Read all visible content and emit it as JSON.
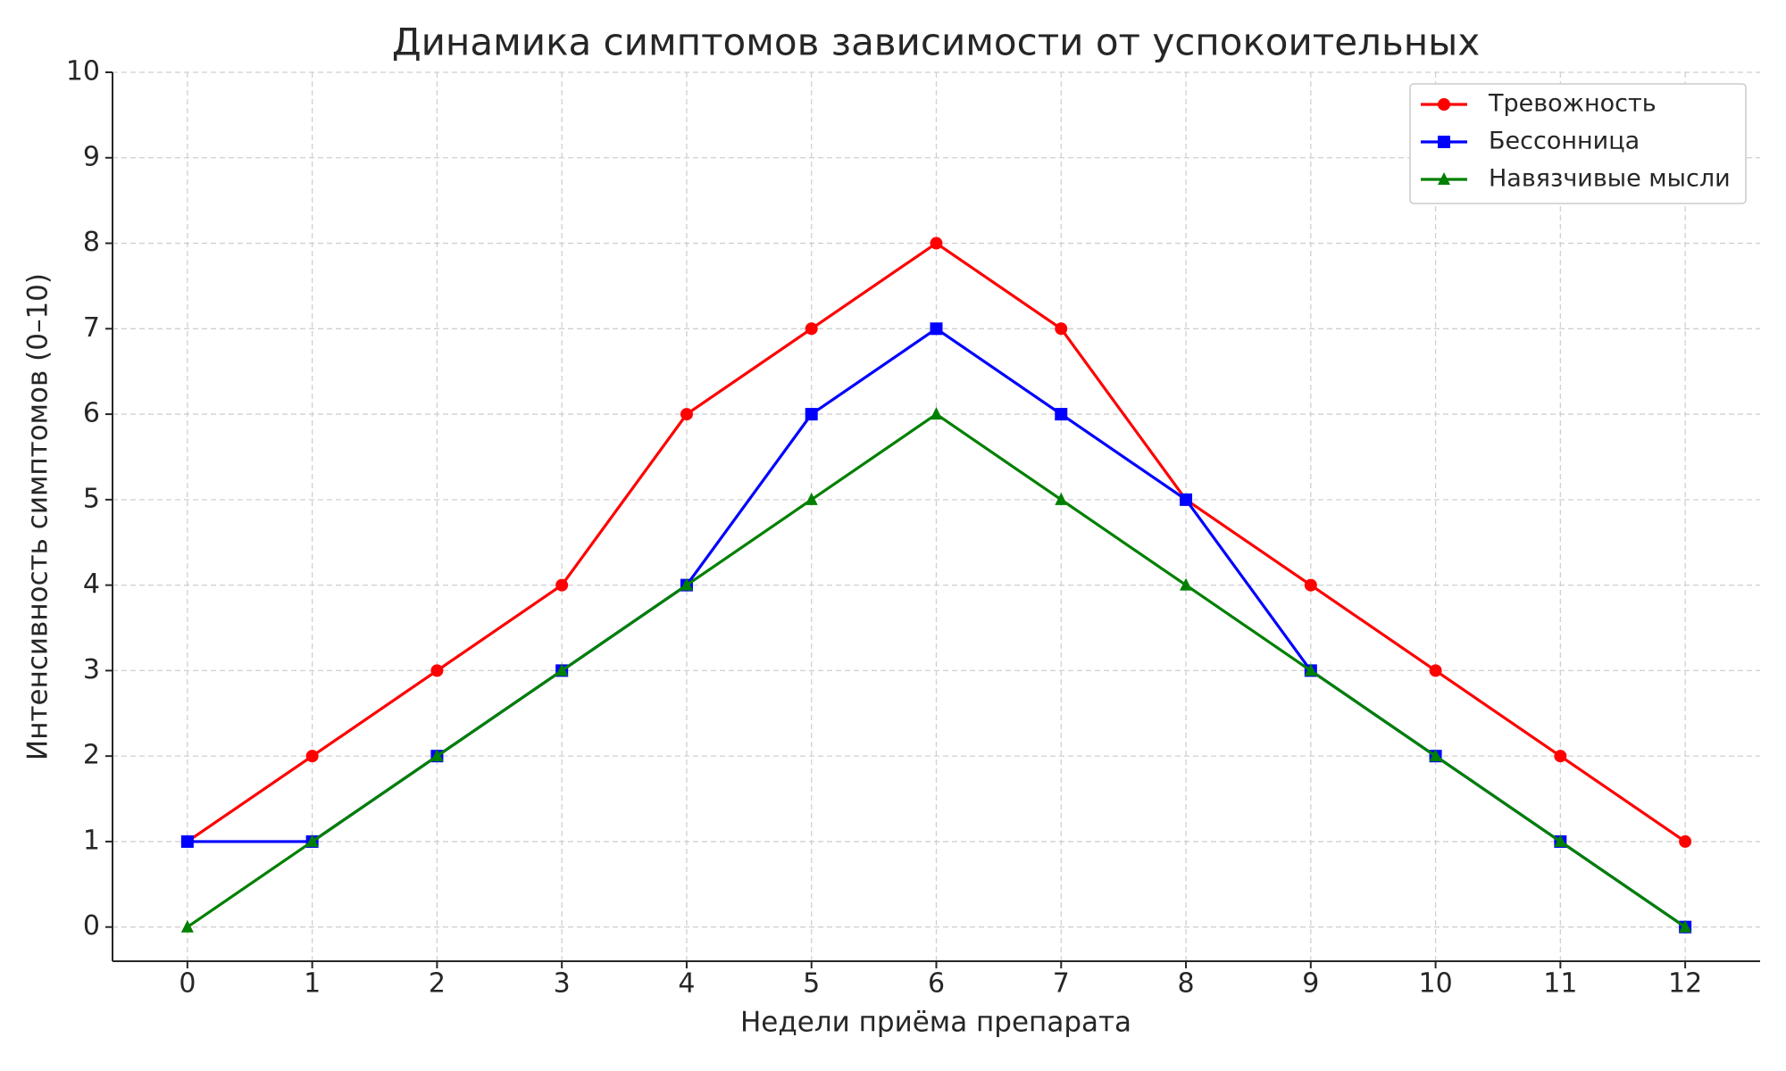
{
  "chart_data": {
    "type": "line",
    "title": "Динамика симптомов зависимости от успокоительных",
    "x_label": "Недели приёма препарата",
    "y_label": "Интенсивность симптомов (0–10)",
    "x": [
      0,
      1,
      2,
      3,
      4,
      5,
      6,
      7,
      8,
      9,
      10,
      11,
      12
    ],
    "series": [
      {
        "name": "Тревожность",
        "color": "#ff0000",
        "marker": "circle",
        "values": [
          1,
          2,
          3,
          4,
          6,
          7,
          8,
          7,
          5,
          4,
          3,
          2,
          1
        ]
      },
      {
        "name": "Бессонница",
        "color": "#0000ff",
        "marker": "square",
        "values": [
          1,
          1,
          2,
          3,
          4,
          6,
          7,
          6,
          5,
          3,
          2,
          1,
          0
        ]
      },
      {
        "name": "Навязчивые мысли",
        "color": "#008000",
        "marker": "triangle",
        "values": [
          0,
          1,
          2,
          3,
          4,
          5,
          6,
          5,
          4,
          3,
          2,
          1,
          0
        ]
      }
    ],
    "xlim": [
      -0.6,
      12.6
    ],
    "ylim": [
      -0.4,
      10
    ],
    "xticks": [
      0,
      1,
      2,
      3,
      4,
      5,
      6,
      7,
      8,
      9,
      10,
      11,
      12
    ],
    "yticks": [
      0,
      1,
      2,
      3,
      4,
      5,
      6,
      7,
      8,
      9,
      10
    ],
    "grid": true,
    "legend": "upper right"
  }
}
